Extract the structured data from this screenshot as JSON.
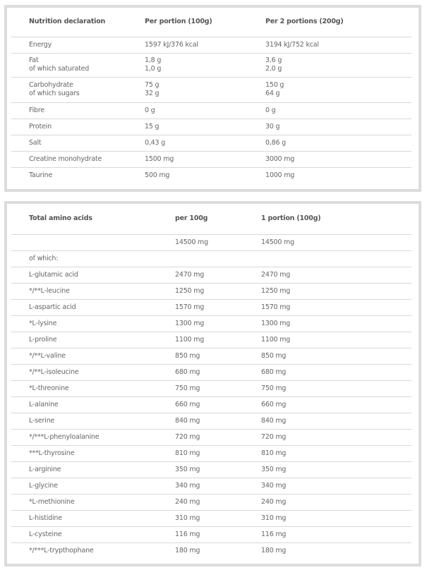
{
  "nutrition": {
    "headers": [
      "Nutrition declaration",
      "Per portion (100g)",
      "Per 2 portions (200g)"
    ],
    "rows": [
      {
        "label": [
          "Energy"
        ],
        "v1": [
          "1597 kJ/376 kcal"
        ],
        "v2": [
          "3194 kJ/752 kcal"
        ]
      },
      {
        "label": [
          "Fat",
          "of which saturated"
        ],
        "v1": [
          "1,8 g",
          "1,0 g"
        ],
        "v2": [
          "3,6 g",
          "2,0 g"
        ]
      },
      {
        "label": [
          "Carbohydrate",
          "of which sugars"
        ],
        "v1": [
          "75 g",
          "32 g"
        ],
        "v2": [
          "150 g",
          "64 g"
        ]
      },
      {
        "label": [
          "Fibre"
        ],
        "v1": [
          "0 g"
        ],
        "v2": [
          "0 g"
        ]
      },
      {
        "label": [
          "Protein"
        ],
        "v1": [
          "15 g"
        ],
        "v2": [
          "30 g"
        ]
      },
      {
        "label": [
          "Salt"
        ],
        "v1": [
          "0,43 g"
        ],
        "v2": [
          "0,86 g"
        ]
      },
      {
        "label": [
          "Creatine monohydrate"
        ],
        "v1": [
          "1500 mg"
        ],
        "v2": [
          "3000 mg"
        ]
      },
      {
        "label": [
          "Taurine"
        ],
        "v1": [
          "500 mg"
        ],
        "v2": [
          "1000 mg"
        ]
      }
    ]
  },
  "amino": {
    "headers": [
      "Total amino acids",
      "per 100g",
      "1 portion (100g)"
    ],
    "rows": [
      [
        "",
        "14500 mg",
        "14500 mg"
      ],
      [
        "of which:",
        "",
        ""
      ],
      [
        "L-glutamic acid",
        "2470 mg",
        "2470 mg"
      ],
      [
        "*/**L-leucine",
        "1250 mg",
        "1250 mg"
      ],
      [
        "L-aspartic acid",
        "1570 mg",
        "1570 mg"
      ],
      [
        "*L-lysine",
        "1300 mg",
        "1300 mg"
      ],
      [
        "L-proline",
        "1100 mg",
        "1100 mg"
      ],
      [
        "*/**L-valine",
        "850 mg",
        "850 mg"
      ],
      [
        "*/**L-isoleucine",
        "680 mg",
        "680 mg"
      ],
      [
        "*L-threonine",
        "750 mg",
        "750 mg"
      ],
      [
        "L-alanine",
        "660 mg",
        "660 mg"
      ],
      [
        "L-serine",
        "840 mg",
        "840 mg"
      ],
      [
        "*/***L-phenyloalanine",
        "720 mg",
        "720 mg"
      ],
      [
        "***L-thyrosine",
        "810 mg",
        "810 mg"
      ],
      [
        "L-arginine",
        "350 mg",
        "350 mg"
      ],
      [
        "L-glycine",
        "340 mg",
        "340 mg"
      ],
      [
        "*L-methionine",
        "240 mg",
        "240 mg"
      ],
      [
        "L-histidine",
        "310 mg",
        "310 mg"
      ],
      [
        "L-cysteine",
        "116 mg",
        "116 mg"
      ],
      [
        "*/***L-trypthophane",
        "180 mg",
        "180 mg"
      ]
    ]
  }
}
